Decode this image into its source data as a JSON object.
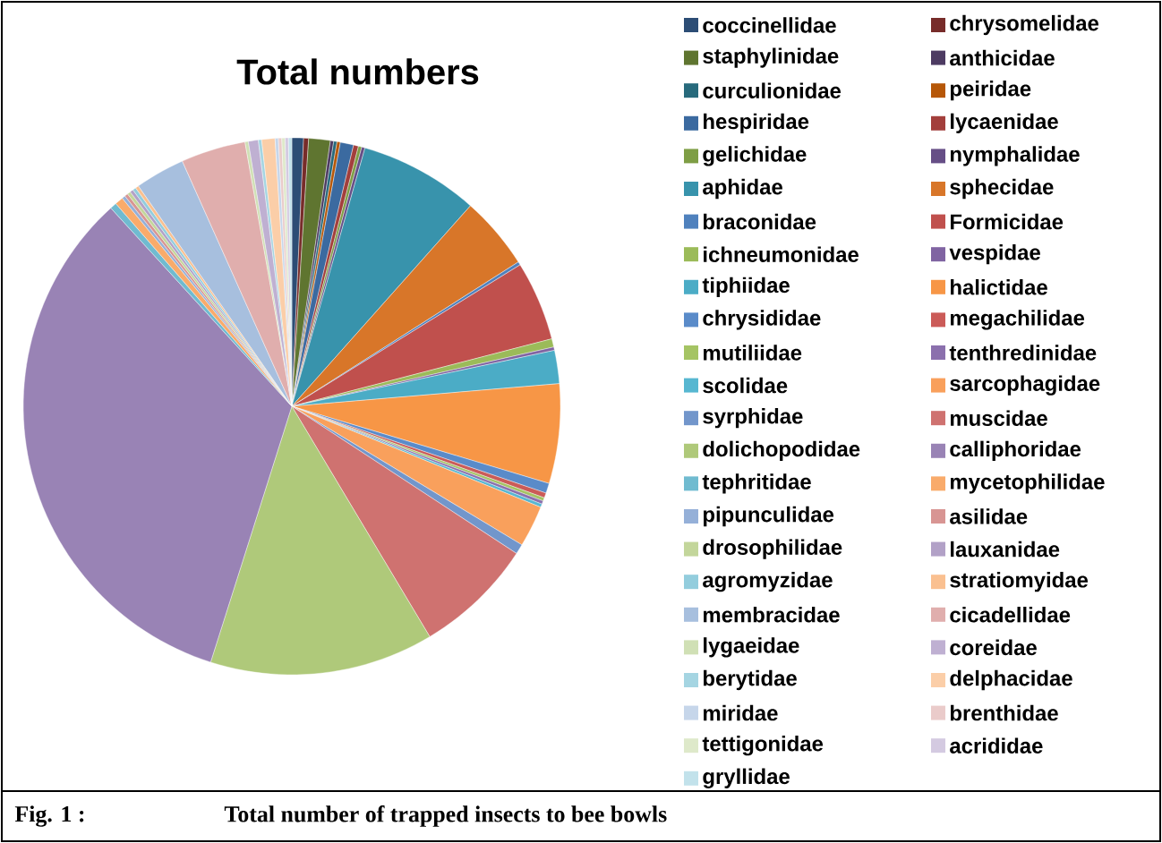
{
  "chart_data": {
    "type": "pie",
    "title": "Total numbers",
    "categories": [
      "coccinellidae",
      "chrysomelidae",
      "staphylinidae",
      "anthicidae",
      "curculionidae",
      "peiridae",
      "hespiridae",
      "lycaenidae",
      "gelichidae",
      "nymphalidae",
      "aphidae",
      "sphecidae",
      "braconidae",
      "Formicidae",
      "ichneumonidae",
      "vespidae",
      "tiphiidae",
      "halictidae",
      "chrysididae",
      "megachilidae",
      "mutiliidae",
      "tenthredinidae",
      "scolidae",
      "sarcophagidae",
      "syrphidae",
      "muscidae",
      "dolichopodidae",
      "calliphoridae",
      "tephritidae",
      "mycetophilidae",
      "pipunculidae",
      "asilidae",
      "drosophilidae",
      "lauxanidae",
      "agromyzidae",
      "stratiomyidae",
      "membracidae",
      "cicadellidae",
      "lygaeidae",
      "coreidae",
      "berytidae",
      "delphacidae",
      "miridae",
      "brenthidae",
      "tettigonidae",
      "acrididae",
      "gryllidae"
    ],
    "values": [
      0.7,
      0.3,
      1.3,
      0.2,
      0.2,
      0.2,
      0.8,
      0.3,
      0.2,
      0.2,
      7.2,
      4.4,
      0.2,
      4.8,
      0.5,
      0.2,
      2.0,
      6.0,
      0.6,
      0.3,
      0.2,
      0.2,
      0.2,
      2.5,
      0.6,
      7.2,
      13.5,
      33.4,
      0.4,
      0.5,
      0.2,
      0.2,
      0.2,
      0.2,
      0.2,
      0.2,
      3.0,
      3.9,
      0.2,
      0.6,
      0.2,
      0.8,
      0.2,
      0.2,
      0.2,
      0.2,
      0.2
    ],
    "colors": [
      "#2c4d75",
      "#772c2a",
      "#5f7530",
      "#4d3b62",
      "#276a7c",
      "#b65708",
      "#3b6aa0",
      "#a33f3c",
      "#7e9e45",
      "#664e86",
      "#3893ac",
      "#d87629",
      "#4f81bd",
      "#c0504d",
      "#9bbb59",
      "#8064a2",
      "#4bacc6",
      "#f79646",
      "#5a8bc9",
      "#cb5b58",
      "#a5c464",
      "#8b70ad",
      "#57b7d1",
      "#f9a05c",
      "#7296cb",
      "#cf7270",
      "#afc97a",
      "#9983b5",
      "#70bbd0",
      "#f9ab6b",
      "#95b0d8",
      "#d89593",
      "#c3d69b",
      "#b2a1c7",
      "#93cddd",
      "#fac090",
      "#a7bfde",
      "#e0aead",
      "#d0e0b5",
      "#bfb0d2",
      "#a5d5e2",
      "#fbcea8",
      "#c6d6ea",
      "#eacbca",
      "#dee9ca",
      "#d4cae1",
      "#c2e2eb"
    ],
    "legend": "right",
    "annotations": [
      "Fig. 1 :",
      "Total number of trapped insects to bee bowls"
    ]
  }
}
